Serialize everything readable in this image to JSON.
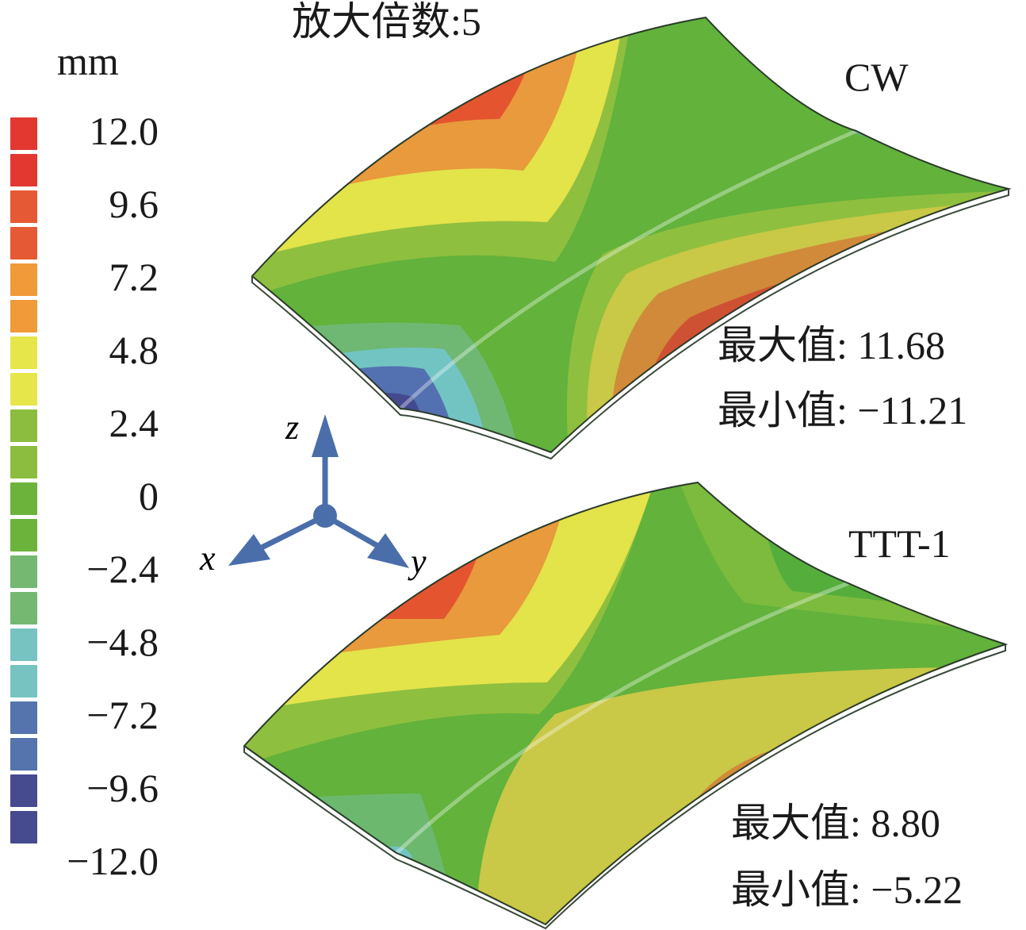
{
  "figure": {
    "title": "放大倍数:5",
    "unit": "mm"
  },
  "legend": {
    "ticks": [
      "12.0",
      "9.6",
      "7.2",
      "4.8",
      "2.4",
      "0",
      "−2.4",
      "−4.8",
      "−7.2",
      "−9.6",
      "−12.0"
    ],
    "swatch_colors": [
      "#e23830",
      "#e23830",
      "#e55a34",
      "#e55a34",
      "#f09a3a",
      "#f09a3a",
      "#e6e64a",
      "#e6e64a",
      "#8dbd3e",
      "#8dbd3e",
      "#6cb33c",
      "#6cb33c",
      "#74b872",
      "#74b872",
      "#76c3c1",
      "#76c3c1",
      "#5573ad",
      "#5573ad",
      "#454b8e",
      "#454b8e"
    ]
  },
  "axes_triad": {
    "color": "#4a6eaa",
    "labels": {
      "x": "x",
      "y": "y",
      "z": "z"
    }
  },
  "models": [
    {
      "name": "CW",
      "max_label": "最大值:",
      "max_value": "11.68",
      "min_label": "最小值:",
      "min_value": "−11.21"
    },
    {
      "name": "TTT-1",
      "max_label": "最大值:",
      "max_value": "8.80",
      "min_label": "最小值:",
      "min_value": "−5.22"
    }
  ],
  "colors": {
    "red": "#d9352c",
    "red_orange": "#e4552f",
    "orange": "#e89a3c",
    "yellow": "#e3e34a",
    "yellow_green": "#8fbf3f",
    "green": "#62b23b",
    "green_gray": "#6fb873",
    "cyan": "#72c4c3",
    "blue": "#5371b0",
    "dark_blue": "#444a90"
  }
}
